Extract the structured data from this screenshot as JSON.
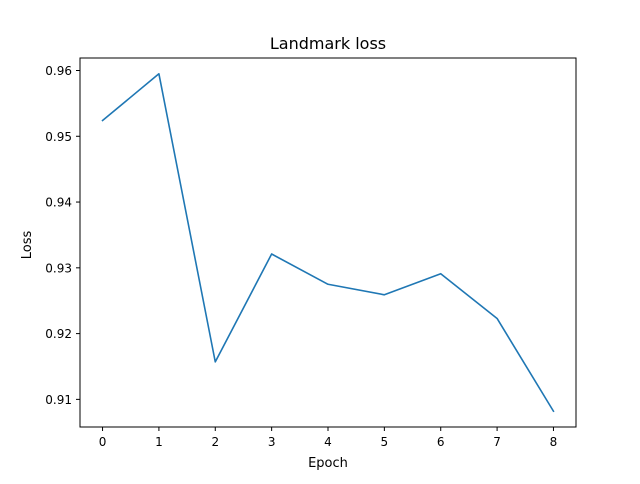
{
  "chart_data": {
    "type": "line",
    "title": "Landmark loss",
    "xlabel": "Epoch",
    "ylabel": "Loss",
    "x": [
      0,
      1,
      2,
      3,
      4,
      5,
      6,
      7,
      8
    ],
    "series": [
      {
        "values": [
          0.9524,
          0.9595,
          0.9157,
          0.9321,
          0.9275,
          0.9259,
          0.9291,
          0.9223,
          0.9082
        ],
        "color": "#1f77b4"
      }
    ],
    "xticks": [
      "0",
      "1",
      "2",
      "3",
      "4",
      "5",
      "6",
      "7",
      "8"
    ],
    "yticks": [
      "0.91",
      "0.92",
      "0.93",
      "0.94",
      "0.95",
      "0.96"
    ],
    "xlim": [
      -0.4,
      8.4
    ],
    "ylim": [
      0.9058,
      0.9619
    ],
    "grid": false,
    "legend": "none"
  }
}
